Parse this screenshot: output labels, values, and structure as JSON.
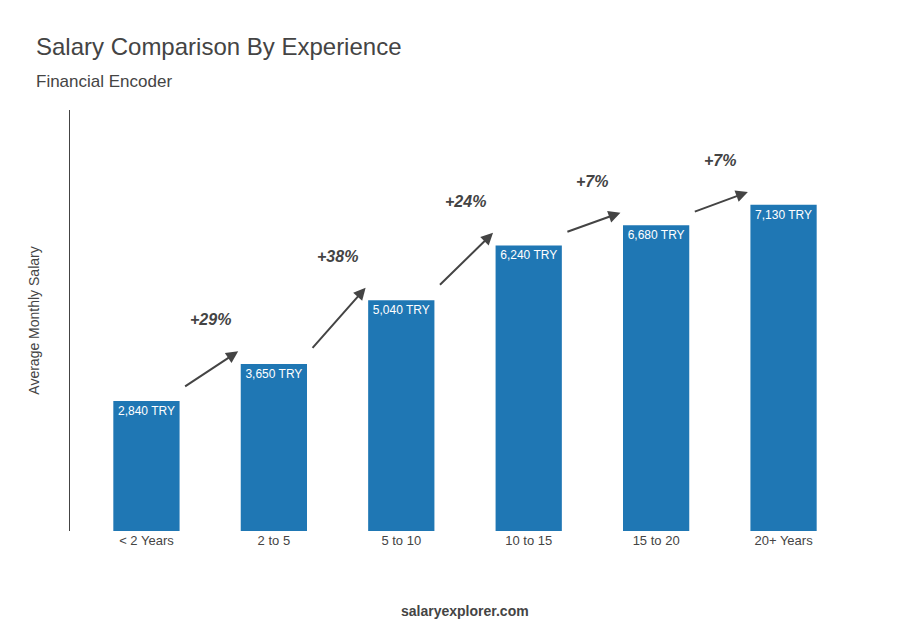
{
  "chart_data": {
    "type": "bar",
    "title": "Salary Comparison By Experience",
    "subtitle": "Financial Encoder",
    "ylabel": "Average Monthly Salary",
    "categories": [
      "< 2 Years",
      "2 to 5",
      "5 to 10",
      "10 to 15",
      "15 to 20",
      "20+ Years"
    ],
    "values": [
      2840,
      3650,
      5040,
      6240,
      6680,
      7130
    ],
    "value_labels": [
      "2,840 TRY",
      "3,650 TRY",
      "5,040 TRY",
      "6,240 TRY",
      "6,680 TRY",
      "7,130 TRY"
    ],
    "data_labels": true,
    "annotations": [
      "+29%",
      "+38%",
      "+24%",
      "+7%",
      "+7%"
    ],
    "footer": "salaryexplorer.com",
    "ylim": [
      0,
      9200
    ],
    "tick_labels": "x",
    "grid": false
  }
}
